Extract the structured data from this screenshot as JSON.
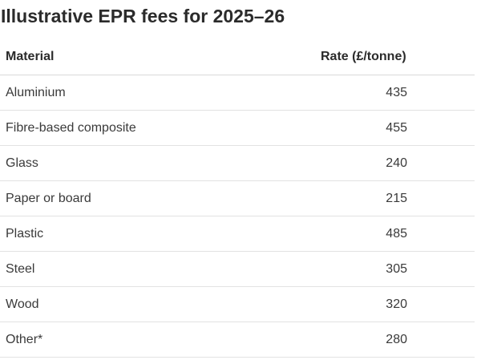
{
  "title": "Illustrative EPR fees for 2025–26",
  "table": {
    "headers": [
      "Material",
      "Rate (£/tonne)"
    ],
    "rows": [
      {
        "material": "Aluminium",
        "rate": "435"
      },
      {
        "material": "Fibre-based composite",
        "rate": "455"
      },
      {
        "material": "Glass",
        "rate": "240"
      },
      {
        "material": "Paper or board",
        "rate": "215"
      },
      {
        "material": "Plastic",
        "rate": "485"
      },
      {
        "material": "Steel",
        "rate": "305"
      },
      {
        "material": "Wood",
        "rate": "320"
      },
      {
        "material": "Other*",
        "rate": "280"
      }
    ]
  }
}
